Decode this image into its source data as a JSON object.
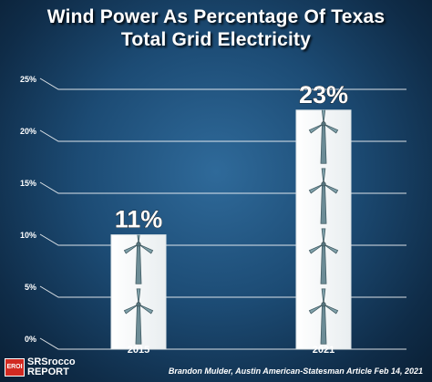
{
  "chart_data": {
    "type": "bar",
    "title": "Wind Power As Percentage Of Texas",
    "subtitle": "Total Grid Electricity",
    "categories": [
      "2015",
      "2021"
    ],
    "values": [
      11,
      23
    ],
    "data_labels": [
      "11%",
      "23%"
    ],
    "yticks": [
      "0%",
      "5%",
      "10%",
      "15%",
      "20%",
      "25%"
    ],
    "ylim": [
      0,
      25
    ],
    "grid": true,
    "bar_color": "#ffffff",
    "bar_icon": "wind-turbine-icon",
    "background_color": "#1c4b74"
  },
  "source": "Brandon Mulder, Austin American-Statesman Article Feb 14, 2021",
  "logo": {
    "mark": "EROI",
    "top": "SRSrocco",
    "bottom": "REPORT"
  }
}
